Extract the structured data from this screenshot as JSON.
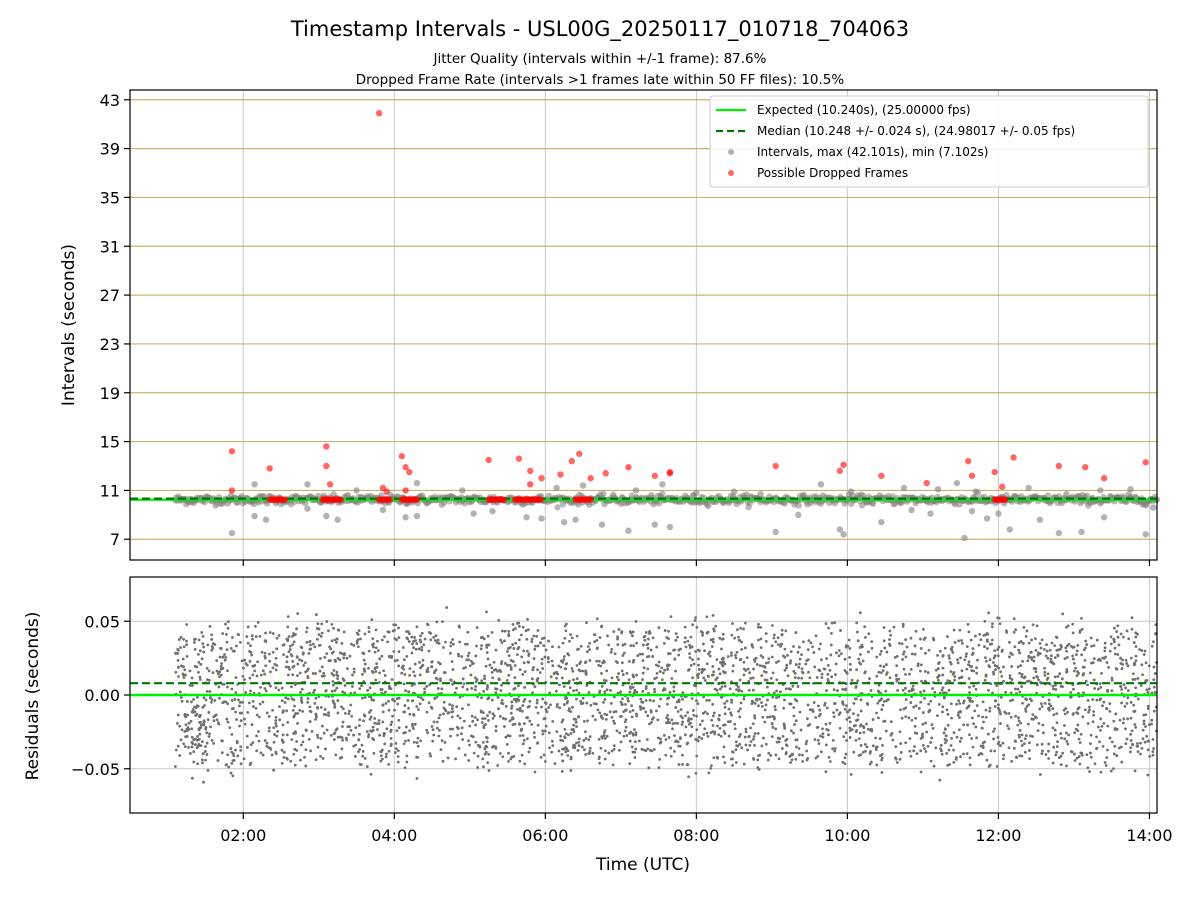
{
  "title": "Timestamp Intervals - USL00G_20250117_010718_704063",
  "subtitle_lines": [
    "Jitter Quality (intervals within +/-1 frame): 87.6%",
    "Dropped Frame Rate (intervals >1 frames late within 50 FF files): 10.5%"
  ],
  "colors": {
    "expected": "#00ee00",
    "median": "#007700",
    "intervals": "#808080",
    "dropped": "#ff0000",
    "gold_grid": "#c8b46e",
    "grid": "#c8c8c8"
  },
  "chart_data": [
    {
      "type": "scatter",
      "panel": "intervals",
      "ylabel": "Intervals (seconds)",
      "xlim_hours": [
        0.5,
        14.1
      ],
      "ylim": [
        5.3,
        43.8
      ],
      "yticks": [
        7,
        11,
        15,
        19,
        23,
        27,
        31,
        35,
        39,
        43
      ],
      "ytick_labels": [
        "7",
        "11",
        "15",
        "19",
        "23",
        "27",
        "31",
        "35",
        "39",
        "43"
      ],
      "grid": "major horizontal (gold) and vertical (gray)",
      "legend_position": "top-right",
      "legend": [
        "Expected (10.240s), (25.00000 fps)",
        "Median (10.248 +/- 0.024 s), (24.98017 +/- 0.05 fps)",
        "Intervals, max (42.101s), min (7.102s)",
        "Possible Dropped Frames"
      ],
      "expected_value": 10.24,
      "median_value": 10.248,
      "interval_max": 42.101,
      "interval_min": 7.102,
      "interval_data_start_hour": 1.1,
      "interval_data_end_hour": 14.1,
      "outliers_low": [
        [
          1.85,
          7.5
        ],
        [
          2.15,
          8.9
        ],
        [
          2.3,
          8.6
        ],
        [
          2.85,
          9.5
        ],
        [
          3.1,
          8.9
        ],
        [
          3.25,
          8.6
        ],
        [
          3.85,
          9.4
        ],
        [
          4.15,
          8.8
        ],
        [
          4.3,
          8.9
        ],
        [
          5.05,
          9.1
        ],
        [
          5.3,
          9.3
        ],
        [
          5.75,
          8.8
        ],
        [
          5.95,
          8.7
        ],
        [
          6.25,
          8.4
        ],
        [
          6.4,
          8.6
        ],
        [
          6.75,
          8.2
        ],
        [
          7.1,
          7.7
        ],
        [
          7.45,
          8.2
        ],
        [
          7.65,
          8.0
        ],
        [
          9.05,
          7.6
        ],
        [
          9.35,
          9.0
        ],
        [
          9.9,
          7.8
        ],
        [
          9.95,
          7.4
        ],
        [
          10.45,
          8.4
        ],
        [
          10.85,
          9.4
        ],
        [
          11.1,
          9.1
        ],
        [
          11.55,
          7.1
        ],
        [
          11.65,
          9.3
        ],
        [
          11.85,
          8.7
        ],
        [
          12.0,
          9.1
        ],
        [
          12.15,
          7.8
        ],
        [
          12.55,
          8.6
        ],
        [
          12.8,
          7.5
        ],
        [
          13.1,
          7.6
        ],
        [
          13.4,
          8.8
        ],
        [
          13.95,
          7.4
        ],
        [
          14.05,
          9.6
        ]
      ],
      "outliers_high": [
        [
          2.15,
          11.5
        ],
        [
          2.85,
          11.5
        ],
        [
          3.5,
          11.0
        ],
        [
          4.3,
          11.6
        ],
        [
          4.9,
          11.0
        ],
        [
          6.15,
          11.2
        ],
        [
          6.5,
          11.4
        ],
        [
          7.2,
          11.0
        ],
        [
          7.55,
          11.5
        ],
        [
          8.0,
          10.8
        ],
        [
          8.5,
          10.9
        ],
        [
          8.85,
          10.7
        ],
        [
          9.65,
          11.5
        ],
        [
          10.05,
          10.9
        ],
        [
          10.75,
          11.2
        ],
        [
          11.2,
          11.1
        ],
        [
          11.45,
          11.6
        ],
        [
          11.7,
          10.9
        ],
        [
          12.4,
          11.2
        ],
        [
          12.9,
          10.7
        ],
        [
          13.35,
          11.0
        ],
        [
          13.75,
          11.1
        ]
      ],
      "dropped_frames": [
        [
          1.85,
          14.2
        ],
        [
          1.85,
          11.0
        ],
        [
          2.35,
          12.8
        ],
        [
          3.1,
          14.6
        ],
        [
          3.1,
          13.0
        ],
        [
          3.15,
          11.5
        ],
        [
          3.8,
          41.9
        ],
        [
          3.85,
          11.2
        ],
        [
          3.9,
          10.9
        ],
        [
          4.1,
          13.8
        ],
        [
          4.15,
          12.9
        ],
        [
          4.2,
          12.5
        ],
        [
          4.15,
          11.0
        ],
        [
          5.25,
          13.5
        ],
        [
          5.65,
          13.6
        ],
        [
          5.8,
          12.6
        ],
        [
          5.8,
          11.5
        ],
        [
          5.95,
          12.0
        ],
        [
          6.2,
          12.3
        ],
        [
          6.35,
          13.4
        ],
        [
          6.45,
          14.0
        ],
        [
          6.6,
          12.0
        ],
        [
          6.8,
          12.4
        ],
        [
          7.1,
          12.9
        ],
        [
          7.45,
          12.2
        ],
        [
          7.65,
          12.5
        ],
        [
          7.65,
          12.4
        ],
        [
          9.05,
          13.0
        ],
        [
          9.9,
          12.6
        ],
        [
          9.95,
          13.1
        ],
        [
          10.45,
          12.2
        ],
        [
          11.05,
          11.6
        ],
        [
          11.6,
          13.4
        ],
        [
          11.65,
          12.2
        ],
        [
          11.95,
          12.5
        ],
        [
          12.05,
          11.3
        ],
        [
          12.2,
          13.7
        ],
        [
          12.8,
          13.0
        ],
        [
          13.15,
          12.9
        ],
        [
          13.4,
          12.0
        ],
        [
          13.95,
          13.3
        ]
      ],
      "dropped_clusters_hours": [
        [
          2.35,
          2.55
        ],
        [
          3.05,
          3.3
        ],
        [
          3.8,
          3.95
        ],
        [
          4.1,
          4.3
        ],
        [
          5.25,
          5.45
        ],
        [
          5.6,
          5.95
        ],
        [
          6.4,
          6.6
        ],
        [
          11.95,
          12.1
        ]
      ],
      "dropped_cluster_value": 10.25
    },
    {
      "type": "scatter",
      "panel": "residuals",
      "xlabel": "Time (UTC)",
      "ylabel": "Residuals (seconds)",
      "xlim_hours": [
        0.5,
        14.1
      ],
      "ylim": [
        -0.08,
        0.08
      ],
      "xticks_hours": [
        2,
        4,
        6,
        8,
        10,
        12,
        14
      ],
      "xtick_labels": [
        "02:00",
        "04:00",
        "06:00",
        "08:00",
        "10:00",
        "12:00",
        "14:00"
      ],
      "yticks": [
        -0.05,
        0.0,
        0.05
      ],
      "ytick_labels": [
        "−0.05",
        "0.00",
        "0.05"
      ],
      "grid": "major both axes",
      "expected_value": 0.0,
      "median_value": 0.008,
      "residual_data_start_hour": 1.1,
      "residual_data_end_hour": 14.1,
      "residual_spread": 0.05,
      "residual_point_count": 3600
    }
  ]
}
